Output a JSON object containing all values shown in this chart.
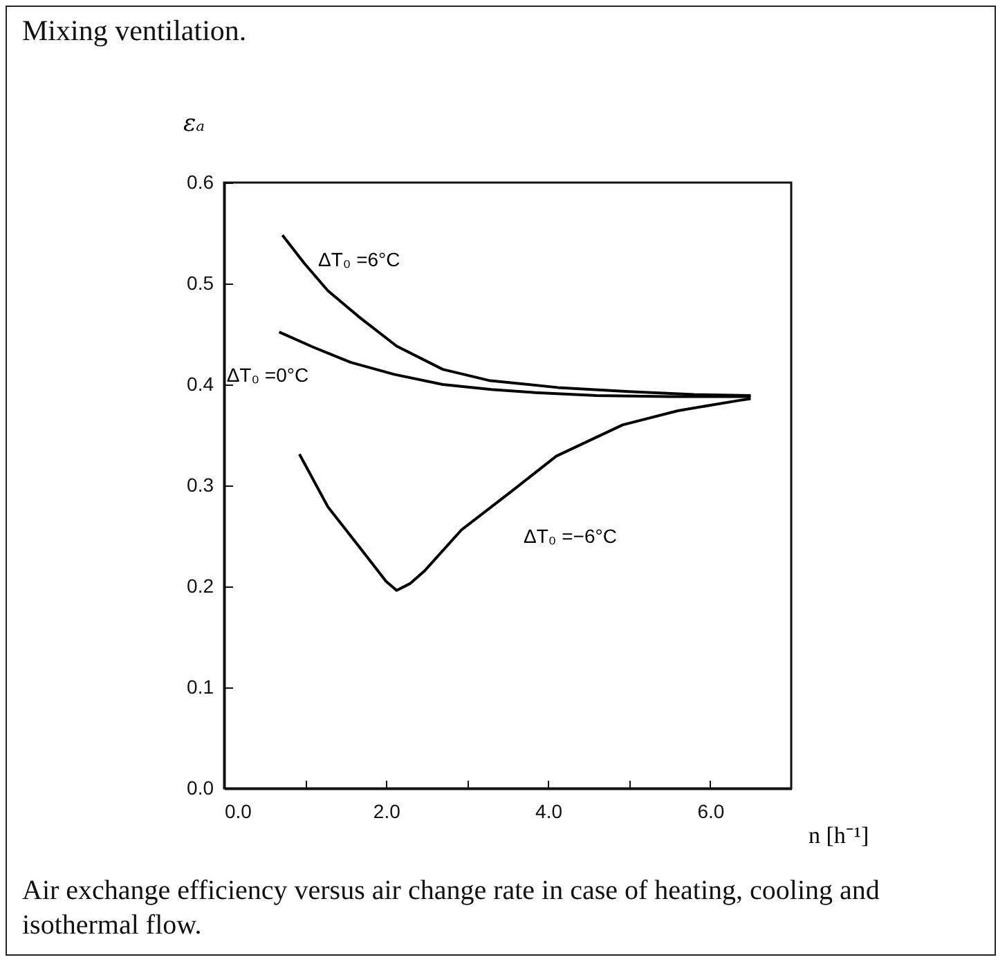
{
  "chart_data": {
    "type": "line",
    "title": "Mixing ventilation.",
    "xlabel": "n [h⁻¹]",
    "ylabel": "εₐ",
    "xlim": [
      0,
      7
    ],
    "ylim": [
      0,
      0.6
    ],
    "xticks": [
      {
        "value": 0,
        "label": "0.0"
      },
      {
        "value": 1,
        "label": null
      },
      {
        "value": 2,
        "label": "2.0"
      },
      {
        "value": 3,
        "label": null
      },
      {
        "value": 4,
        "label": "4.0"
      },
      {
        "value": 5,
        "label": null
      },
      {
        "value": 6,
        "label": "6.0"
      }
    ],
    "yticks": [
      {
        "value": 0,
        "label": "0.0"
      },
      0.1,
      0.2,
      0.3,
      0.4,
      0.5,
      0.6
    ],
    "grid": false,
    "marker": "none",
    "line_style": "solid",
    "series": [
      {
        "name": "ΔT₀ =6°C",
        "color": "#000000",
        "x": [
          0.72,
          0.99,
          1.28,
          1.68,
          2.13,
          2.7,
          3.27,
          4.12,
          5.0,
          5.8,
          6.5
        ],
        "values": [
          0.548,
          0.52,
          0.493,
          0.466,
          0.438,
          0.415,
          0.404,
          0.397,
          0.393,
          0.39,
          0.389
        ]
      },
      {
        "name": "ΔT₀ =0°C",
        "color": "#000000",
        "x": [
          0.68,
          1.1,
          1.56,
          2.1,
          2.7,
          3.3,
          3.84,
          4.6,
          5.5,
          6.5
        ],
        "values": [
          0.452,
          0.437,
          0.422,
          0.41,
          0.4,
          0.395,
          0.392,
          0.389,
          0.388,
          0.388
        ]
      },
      {
        "name": "ΔT₀ =−6°C",
        "color": "#000000",
        "x": [
          0.93,
          1.28,
          1.68,
          2.0,
          2.13,
          2.3,
          2.47,
          2.93,
          3.56,
          4.1,
          4.92,
          5.6,
          6.34,
          6.5
        ],
        "values": [
          0.331,
          0.279,
          0.238,
          0.205,
          0.196,
          0.203,
          0.215,
          0.256,
          0.295,
          0.329,
          0.36,
          0.374,
          0.384,
          0.386
        ]
      }
    ],
    "annotations": [
      "Air exchange efficiency versus air change rate in case of heating, cooling and isothermal flow."
    ]
  }
}
